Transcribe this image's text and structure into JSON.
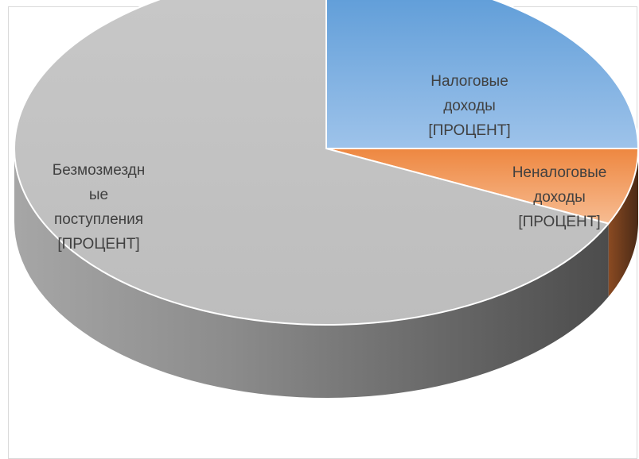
{
  "chart_data": {
    "type": "pie",
    "style": "3d",
    "title": "",
    "slices": [
      {
        "name": "Налоговые доходы",
        "value": 25,
        "label_lines": [
          "Налоговые",
          "доходы",
          "[ПРОЦЕНТ]"
        ],
        "color": "#5b9bd5"
      },
      {
        "name": "Неналоговые доходы",
        "value": 7,
        "label_lines": [
          "Неналоговые",
          "доходы",
          "[ПРОЦЕНТ]"
        ],
        "color": "#ed7d31"
      },
      {
        "name": "Безмозмездные поступления",
        "value": 68,
        "label_lines": [
          "Безмозмездн",
          "ые",
          "поступления",
          "[ПРОЦЕНТ]"
        ],
        "color": "#a5a5a5"
      }
    ],
    "legend": "none",
    "start_angle": "12 o'clock, clockwise",
    "label_color": "#404040"
  }
}
